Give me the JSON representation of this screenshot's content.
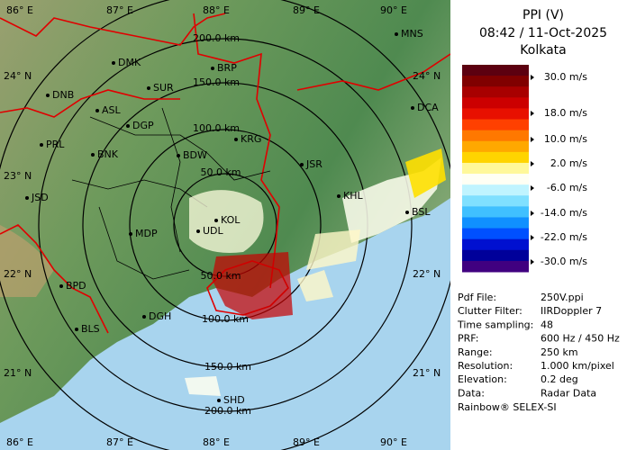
{
  "map": {
    "longitude_labels_top": [
      "86° E",
      "87° E",
      "88° E",
      "89° E",
      "90° E"
    ],
    "longitude_labels_bottom": [
      "86° E",
      "87° E",
      "88° E",
      "89° E",
      "90° E"
    ],
    "latitude_labels_left": [
      "24° N",
      "23° N",
      "22° N",
      "21° N"
    ],
    "latitude_labels_right": [
      "24° N",
      "22° N",
      "21° N"
    ],
    "range_labels": [
      "200.0 km",
      "150.0 km",
      "100.0 km",
      "50.0 km",
      "50.0 km",
      "100.0 km",
      "150.0 km",
      "200.0 km"
    ],
    "places": [
      "MNS",
      "DMK",
      "BRP",
      "DNB",
      "SUR",
      "ASL",
      "DCA",
      "DGP",
      "KRG",
      "PRL",
      "BNK",
      "BDW",
      "JSR",
      "JSD",
      "KHL",
      "BSL",
      "MDP",
      "UDL",
      "KOL",
      "BPD",
      "DGH",
      "BLS",
      "SHD"
    ]
  },
  "panel": {
    "title": "PPI (V)",
    "time": "08:42 / 11-Oct-2025",
    "site": "Kolkata",
    "legend": {
      "labels": [
        "30.0 m/s",
        "18.0 m/s",
        "10.0 m/s",
        "2.0 m/s",
        "-6.0 m/s",
        "-14.0 m/s",
        "-22.0 m/s",
        "-30.0 m/s"
      ],
      "colors": [
        "#5c0010",
        "#800000",
        "#a80000",
        "#cc0000",
        "#e81000",
        "#ff4000",
        "#ff7800",
        "#ffa800",
        "#ffd400",
        "#fff89a",
        "#fffff4",
        "#c0f4ff",
        "#80e0ff",
        "#40c0ff",
        "#1090ff",
        "#0050ff",
        "#0010d0",
        "#00009a",
        "#400080"
      ]
    },
    "info": [
      [
        "Pdf File:",
        "250V.ppi"
      ],
      [
        "Clutter Filter:",
        "IIRDoppler 7"
      ],
      [
        "Time sampling:",
        "48"
      ],
      [
        "PRF:",
        "600 Hz / 450 Hz"
      ],
      [
        "Range:",
        "250 km"
      ],
      [
        "Resolution:",
        "1.000 km/pixel"
      ],
      [
        "Elevation:",
        "0.2 deg"
      ],
      [
        "Data:",
        "Radar Data"
      ]
    ],
    "footer": "Rainbow® SELEX-SI"
  }
}
